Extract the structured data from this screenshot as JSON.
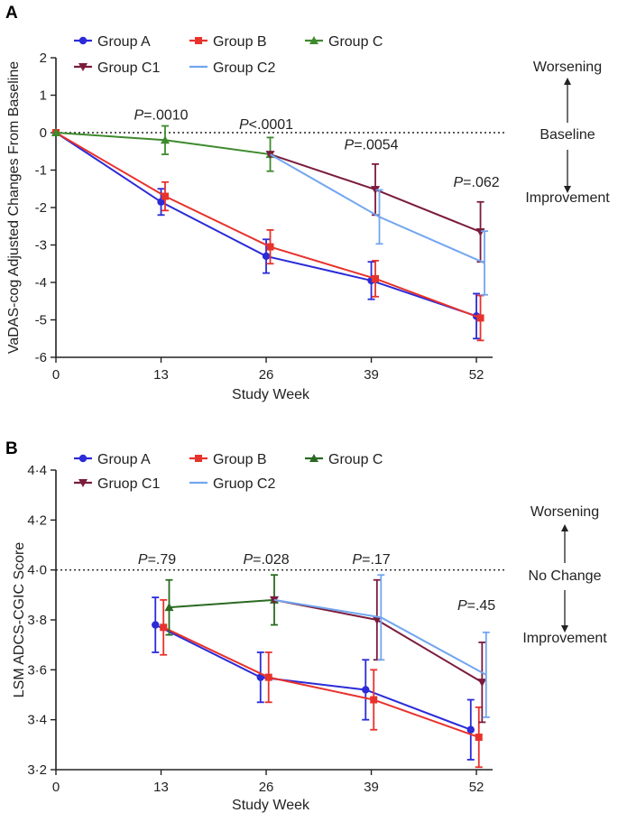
{
  "chart_data": [
    {
      "type": "line",
      "panel_label": "A",
      "x": [
        0,
        13,
        26,
        39,
        52
      ],
      "xlabel": "Study Week",
      "ylabel": "VaDAS-cog Adjusted Changes From Baseline",
      "xlim": [
        0,
        54
      ],
      "ylim": [
        -6,
        2
      ],
      "xticks": [
        "0",
        "13",
        "26",
        "39",
        "52"
      ],
      "yticks": [
        "2",
        "1",
        "0",
        "-1",
        "-2",
        "-3",
        "-4",
        "-5",
        "-6"
      ],
      "reference_line": 0,
      "legend": [
        "Group A",
        "Group B",
        "Group C",
        "Group C1",
        "Group C2"
      ],
      "series": [
        {
          "name": "Group A",
          "color": "#2b2bd8",
          "marker": "circle",
          "points": [
            [
              0,
              0
            ],
            [
              13,
              -1.85
            ],
            [
              26,
              -3.3
            ],
            [
              39,
              -3.95
            ],
            [
              52,
              -4.9
            ]
          ],
          "err": [
            0,
            0.35,
            0.45,
            0.5,
            0.6
          ]
        },
        {
          "name": "Group B",
          "color": "#e8322c",
          "marker": "square",
          "points": [
            [
              0,
              0
            ],
            [
              13.5,
              -1.7
            ],
            [
              26.5,
              -3.05
            ],
            [
              39.5,
              -3.9
            ],
            [
              52.5,
              -4.95
            ]
          ],
          "err": [
            0,
            0.38,
            0.45,
            0.48,
            0.6
          ]
        },
        {
          "name": "Group C",
          "color": "#3e8a2e",
          "marker": "triangle-up",
          "points": [
            [
              0,
              0
            ],
            [
              13.5,
              -0.2
            ],
            [
              26.5,
              -0.58
            ]
          ],
          "err": [
            0,
            0.38,
            0.45
          ]
        },
        {
          "name": "Group C1",
          "color": "#7b1c3c",
          "marker": "triangle-down",
          "points": [
            [
              26.5,
              -0.58
            ],
            [
              39.5,
              -1.52
            ],
            [
              52.5,
              -2.65
            ]
          ],
          "err": [
            0,
            0.68,
            0.8
          ]
        },
        {
          "name": "Group C2",
          "color": "#72a6ef",
          "marker": "none",
          "points": [
            [
              26.5,
              -0.58
            ],
            [
              40,
              -2.25
            ],
            [
              53,
              -3.48
            ]
          ],
          "err": [
            0,
            0.72,
            0.85
          ]
        }
      ],
      "p_values": [
        {
          "prefix": "P",
          "value": "=.0010",
          "x": 13,
          "y": 0.35
        },
        {
          "prefix": "P",
          "value": "<.0001",
          "x": 26,
          "y": 0.1
        },
        {
          "prefix": "P",
          "value": "=.0054",
          "x": 39,
          "y": -0.45
        },
        {
          "prefix": "P",
          "value": "=.062",
          "x": 52,
          "y": -1.45
        }
      ],
      "annotations": {
        "top": "Worsening",
        "middle": "Baseline",
        "bottom": "Improvement"
      }
    },
    {
      "type": "line",
      "panel_label": "B",
      "x": [
        13,
        26,
        39,
        52
      ],
      "xlabel": "Study Week",
      "ylabel": "LSM ADCS-CGIC Score",
      "xlim": [
        0,
        54
      ],
      "ylim": [
        3.2,
        4.4
      ],
      "xticks": [
        "0",
        "13",
        "26",
        "39",
        "52"
      ],
      "yticks": [
        "4·4",
        "4·2",
        "4·0",
        "3·8",
        "3·6",
        "3·4",
        "3·2"
      ],
      "reference_line": 4.0,
      "legend": [
        "Group A",
        "Group B",
        "Group C",
        "Gruop C1",
        "Gruop C2"
      ],
      "series": [
        {
          "name": "Group A",
          "color": "#2b2bd8",
          "marker": "circle",
          "points": [
            [
              12.3,
              3.78
            ],
            [
              25.3,
              3.57
            ],
            [
              38.3,
              3.52
            ],
            [
              51.3,
              3.36
            ]
          ],
          "err": [
            0.11,
            0.1,
            0.12,
            0.12
          ]
        },
        {
          "name": "Group B",
          "color": "#e8322c",
          "marker": "square",
          "points": [
            [
              13.3,
              3.77
            ],
            [
              26.3,
              3.57
            ],
            [
              39.3,
              3.48
            ],
            [
              52.3,
              3.33
            ]
          ],
          "err": [
            0.11,
            0.1,
            0.12,
            0.12
          ]
        },
        {
          "name": "Group C",
          "color": "#2a6a22",
          "marker": "triangle-up",
          "points": [
            [
              14,
              3.85
            ],
            [
              27,
              3.88
            ]
          ],
          "err": [
            0.11,
            0.1
          ]
        },
        {
          "name": "Gruop C1",
          "color": "#7b1c3c",
          "marker": "triangle-down",
          "points": [
            [
              27,
              3.88
            ],
            [
              39.7,
              3.8
            ],
            [
              52.7,
              3.55
            ]
          ],
          "err": [
            0,
            0.16,
            0.16
          ]
        },
        {
          "name": "Gruop C2",
          "color": "#72a6ef",
          "marker": "none",
          "points": [
            [
              27,
              3.88
            ],
            [
              40.2,
              3.81
            ],
            [
              53.2,
              3.58
            ]
          ],
          "err": [
            0,
            0.17,
            0.17
          ]
        }
      ],
      "p_values": [
        {
          "prefix": "P",
          "value": "=.79",
          "x": 12.5,
          "y": 4.025
        },
        {
          "prefix": "P",
          "value": "=.028",
          "x": 26,
          "y": 4.025
        },
        {
          "prefix": "P",
          "value": "=.17",
          "x": 39,
          "y": 4.025
        },
        {
          "prefix": "P",
          "value": "=.45",
          "x": 52,
          "y": 3.84
        }
      ],
      "annotations": {
        "top": "Worsening",
        "middle": "No Change",
        "bottom": "Improvement"
      }
    }
  ]
}
